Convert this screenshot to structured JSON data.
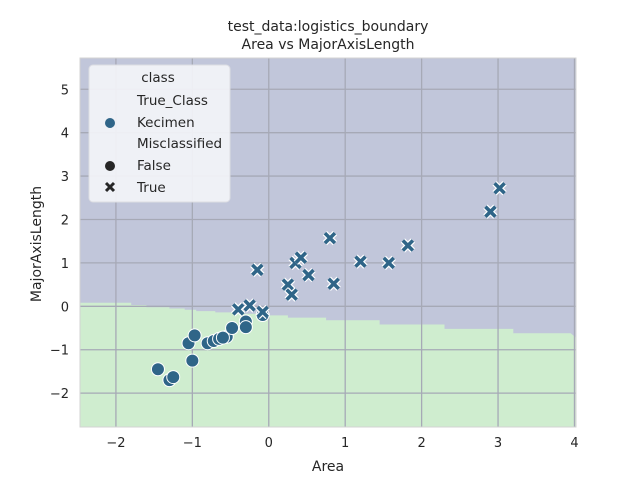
{
  "chart_data": {
    "type": "scatter",
    "title_line1": "test_data:logistics_boundary",
    "title_line2": "Area vs MajorAxisLength",
    "xlabel": "Area",
    "ylabel": "MajorAxisLength",
    "xlim": [
      -2.47,
      4.02
    ],
    "ylim": [
      -2.78,
      5.72
    ],
    "x_ticks": [
      -2,
      -1,
      0,
      1,
      2,
      3,
      4
    ],
    "y_ticks": [
      -2,
      -1,
      0,
      1,
      2,
      3,
      4,
      5
    ],
    "grid": true,
    "legend_placement": "top-left",
    "legend": {
      "title": "class",
      "section1_title": "True_Class",
      "class_label": "Kecimen",
      "section2_title": "Misclassified",
      "false_label": "False",
      "true_label": "True"
    },
    "colors": {
      "region_upper": "#c1c6da",
      "region_lower": "#cfedcf",
      "marker": "#2f6588",
      "grid": "#a6a9b6",
      "axes_edge": "#d3d3d3"
    },
    "decision_boundary": {
      "x": [
        -2.47,
        -1.8,
        -1.8,
        -1.6,
        -1.6,
        -1.3,
        -1.3,
        -1.1,
        -1.1,
        -0.95,
        -0.95,
        -0.7,
        -0.7,
        -0.4,
        -0.4,
        -0.1,
        -0.1,
        0.25,
        0.25,
        0.75,
        0.75,
        1.45,
        1.45,
        2.3,
        2.3,
        3.2,
        3.2,
        3.95,
        4.02
      ],
      "y": [
        0.08,
        0.08,
        0.03,
        0.03,
        -0.02,
        -0.02,
        -0.05,
        -0.05,
        -0.08,
        -0.08,
        -0.11,
        -0.11,
        -0.14,
        -0.14,
        -0.17,
        -0.17,
        -0.21,
        -0.21,
        -0.26,
        -0.26,
        -0.32,
        -0.32,
        -0.42,
        -0.42,
        -0.52,
        -0.52,
        -0.62,
        -0.62,
        -0.72
      ]
    },
    "series": [
      {
        "name": "False",
        "marker": "circle",
        "points": [
          [
            -1.45,
            -1.45
          ],
          [
            -1.3,
            -1.7
          ],
          [
            -1.25,
            -1.63
          ],
          [
            -1.05,
            -0.85
          ],
          [
            -0.97,
            -0.67
          ],
          [
            -1.0,
            -1.25
          ],
          [
            -0.8,
            -0.85
          ],
          [
            -0.72,
            -0.8
          ],
          [
            -0.65,
            -0.75
          ],
          [
            -0.55,
            -0.7
          ],
          [
            -0.48,
            -0.5
          ],
          [
            -0.3,
            -0.35
          ],
          [
            -0.3,
            -0.48
          ],
          [
            -0.08,
            -0.2
          ],
          [
            -0.6,
            -0.72
          ]
        ]
      },
      {
        "name": "True",
        "marker": "x",
        "points": [
          [
            -0.4,
            -0.07
          ],
          [
            -0.25,
            0.02
          ],
          [
            -0.08,
            -0.13
          ],
          [
            -0.15,
            0.84
          ],
          [
            0.25,
            0.5
          ],
          [
            0.3,
            0.27
          ],
          [
            0.35,
            1.0
          ],
          [
            0.42,
            1.12
          ],
          [
            0.52,
            0.72
          ],
          [
            0.8,
            1.57
          ],
          [
            0.85,
            0.52
          ],
          [
            1.2,
            1.03
          ],
          [
            1.57,
            1.0
          ],
          [
            1.82,
            1.4
          ],
          [
            2.9,
            2.18
          ],
          [
            3.02,
            2.72
          ]
        ]
      }
    ]
  }
}
